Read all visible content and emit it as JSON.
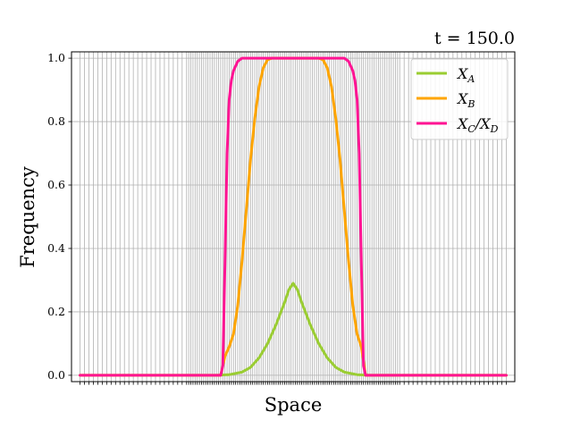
{
  "chart_data": {
    "type": "line",
    "title": "t = 150.0",
    "xlabel": "Space",
    "ylabel": "Frequency",
    "xlim": [
      -0.02,
      1.02
    ],
    "ylim": [
      -0.02,
      1.02
    ],
    "yticks": [
      0.0,
      0.2,
      0.4,
      0.6,
      0.8,
      1.0
    ],
    "ytick_labels": [
      "0.0",
      "0.2",
      "0.4",
      "0.6",
      "0.8",
      "1.0"
    ],
    "grid": true,
    "legend": "top-right",
    "series": [
      {
        "name": "X_A",
        "color": "#9acd32",
        "x": [
          0.0,
          0.32,
          0.35,
          0.38,
          0.4,
          0.42,
          0.44,
          0.46,
          0.48,
          0.49,
          0.5,
          0.51,
          0.52,
          0.54,
          0.56,
          0.58,
          0.6,
          0.62,
          0.65,
          0.68,
          1.0
        ],
        "y": [
          0.0,
          0.0,
          0.002,
          0.01,
          0.025,
          0.055,
          0.1,
          0.16,
          0.23,
          0.27,
          0.29,
          0.27,
          0.23,
          0.16,
          0.1,
          0.055,
          0.025,
          0.01,
          0.002,
          0.0,
          0.0
        ]
      },
      {
        "name": "X_B",
        "color": "#ffa500",
        "x": [
          0.0,
          0.33,
          0.34,
          0.35,
          0.36,
          0.37,
          0.38,
          0.39,
          0.4,
          0.41,
          0.42,
          0.43,
          0.44,
          0.45,
          0.46,
          0.47,
          0.48,
          0.5,
          0.52,
          0.53,
          0.54,
          0.55,
          0.56,
          0.57,
          0.58,
          0.59,
          0.6,
          0.61,
          0.62,
          0.63,
          0.64,
          0.65,
          0.66,
          0.67,
          1.0
        ],
        "y": [
          0.0,
          0.0,
          0.06,
          0.09,
          0.13,
          0.22,
          0.36,
          0.52,
          0.68,
          0.81,
          0.91,
          0.97,
          0.995,
          1.0,
          1.0,
          1.0,
          1.0,
          1.0,
          1.0,
          1.0,
          1.0,
          1.0,
          1.0,
          0.995,
          0.97,
          0.91,
          0.81,
          0.68,
          0.52,
          0.36,
          0.22,
          0.13,
          0.09,
          0.0,
          0.0
        ]
      },
      {
        "name": "X_C/X_D",
        "color": "#ff1493",
        "x": [
          0.0,
          0.33,
          0.335,
          0.34,
          0.345,
          0.35,
          0.355,
          0.36,
          0.37,
          0.38,
          0.4,
          0.5,
          0.62,
          0.63,
          0.64,
          0.645,
          0.65,
          0.655,
          0.66,
          0.665,
          0.67,
          1.0
        ],
        "y": [
          0.0,
          0.0,
          0.03,
          0.35,
          0.7,
          0.87,
          0.93,
          0.96,
          0.99,
          1.0,
          1.0,
          1.0,
          1.0,
          0.99,
          0.96,
          0.93,
          0.87,
          0.7,
          0.35,
          0.03,
          0.0,
          0.0
        ]
      }
    ]
  }
}
